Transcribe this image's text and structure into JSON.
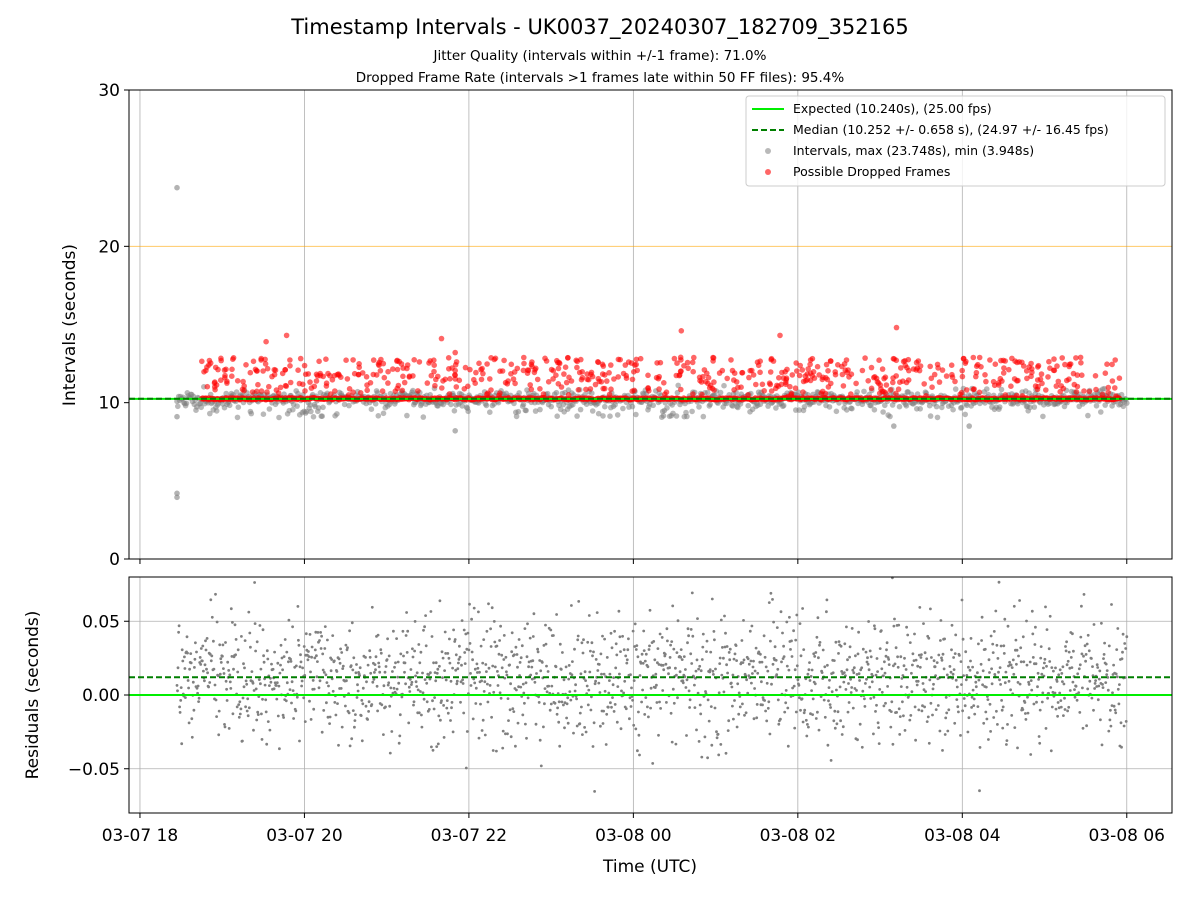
{
  "title": "Timestamp Intervals - UK0037_20240307_182709_352165",
  "subtitles": [
    "Jitter Quality (intervals within +/-1 frame): 71.0%",
    "Dropped Frame Rate (intervals >1 frames late within 50 FF files): 95.4%"
  ],
  "colors": {
    "expected": "#00ee00",
    "median": "#007f00",
    "intervals": "#808080",
    "dropped": "#ff0000",
    "threshold": "#ffa500",
    "grid": "#b0b0b0"
  },
  "chart_data": [
    {
      "type": "scatter",
      "panel": "intervals",
      "xlabel": "",
      "ylabel": "Intervals (seconds)",
      "ylim": [
        0,
        30
      ],
      "yticks": [
        0,
        10,
        20,
        30
      ],
      "xlim": [
        "2024-03-07 17:52",
        "2024-03-08 06:33"
      ],
      "xticks": [
        "03-07 18",
        "03-07 20",
        "03-07 22",
        "03-08 00",
        "03-08 02",
        "03-08 04",
        "03-08 06"
      ],
      "grid": true,
      "legend_position": "top-right",
      "legend": [
        "Expected (10.240s), (25.00 fps)",
        "Median (10.252 +/- 0.658 s), (24.97 +/- 16.45 fps)",
        "Intervals, max (23.748s), min (3.948s)",
        "Possible Dropped Frames"
      ],
      "series": [
        {
          "name": "Expected (10.240s), (25.00 fps)",
          "kind": "hline",
          "y": 10.24
        },
        {
          "name": "Median (10.252 +/- 0.658 s), (24.97 +/- 16.45 fps)",
          "kind": "hline-dashed",
          "y": 10.252
        },
        {
          "kind": "hline-threshold",
          "y": 20.0
        },
        {
          "name": "Intervals, max (23.748s), min (3.948s)",
          "kind": "scatter",
          "time_range": [
            "2024-03-07 18:27",
            "2024-03-08 06:00"
          ],
          "count": 4055,
          "typical": 10.25,
          "max": 23.748,
          "min": 3.948,
          "notable_points": [
            {
              "t": "2024-03-07 18:27",
              "y": 23.748
            },
            {
              "t": "2024-03-07 18:27",
              "y": 4.2
            },
            {
              "t": "2024-03-07 18:27",
              "y": 3.948
            },
            {
              "t": "2024-03-07 18:27",
              "y": 9.1
            },
            {
              "t": "2024-03-07 21:50",
              "y": 8.2
            },
            {
              "t": "2024-03-08 03:10",
              "y": 8.5
            },
            {
              "t": "2024-03-08 04:05",
              "y": 8.5
            }
          ]
        },
        {
          "name": "Possible Dropped Frames",
          "kind": "scatter",
          "time_range": [
            "2024-03-07 18:45",
            "2024-03-08 05:55"
          ],
          "baseline": 10.25,
          "spread_range": [
            10.4,
            12.9
          ],
          "outliers": [
            {
              "t": "2024-03-07 19:32",
              "y": 13.9
            },
            {
              "t": "2024-03-07 19:47",
              "y": 14.3
            },
            {
              "t": "2024-03-07 21:50",
              "y": 13.2
            },
            {
              "t": "2024-03-07 21:40",
              "y": 14.1
            },
            {
              "t": "2024-03-08 00:35",
              "y": 14.6
            },
            {
              "t": "2024-03-08 01:47",
              "y": 14.3
            },
            {
              "t": "2024-03-08 03:12",
              "y": 14.8
            }
          ]
        }
      ]
    },
    {
      "type": "scatter",
      "panel": "residuals",
      "xlabel": "Time (UTC)",
      "ylabel": "Residuals (seconds)",
      "ylim": [
        -0.08,
        0.08
      ],
      "yticks": [
        -0.05,
        0.0,
        0.05
      ],
      "ytick_labels": [
        "−0.05",
        "0.00",
        "0.05"
      ],
      "xlim": [
        "2024-03-07 17:52",
        "2024-03-08 06:33"
      ],
      "xticks": [
        "03-07 18",
        "03-07 20",
        "03-07 22",
        "03-08 00",
        "03-08 02",
        "03-08 04",
        "03-08 06"
      ],
      "grid": true,
      "series": [
        {
          "kind": "hline",
          "y": 0.0
        },
        {
          "kind": "hline-dashed",
          "y": 0.012
        },
        {
          "kind": "scatter",
          "time_range": [
            "2024-03-07 18:27",
            "2024-03-08 06:00"
          ],
          "center": 0.012,
          "spread": 0.022,
          "count": 2100
        }
      ]
    }
  ]
}
